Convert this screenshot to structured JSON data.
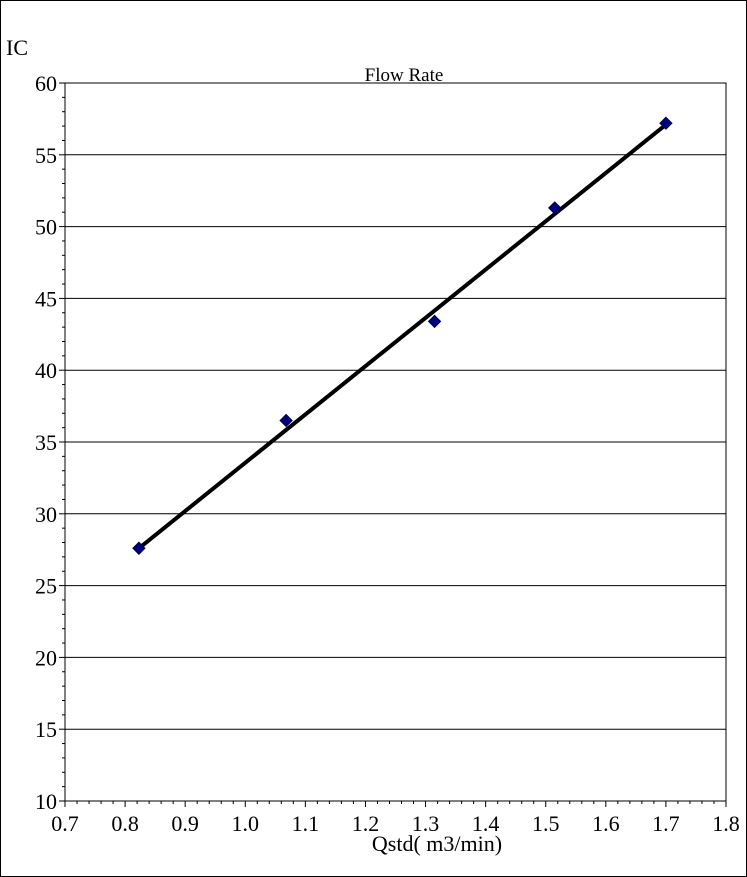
{
  "chart_data": {
    "type": "scatter",
    "title": "Flow Rate",
    "xlabel": "Qstd( m3/min)",
    "ylabel": "IC",
    "xlim": [
      0.7,
      1.8
    ],
    "ylim": [
      10,
      60
    ],
    "x_ticks": [
      "0.7",
      "0.8",
      "0.9",
      "1.0",
      "1.1",
      "1.2",
      "1.3",
      "1.4",
      "1.5",
      "1.6",
      "1.7",
      "1.8"
    ],
    "y_ticks": [
      "10",
      "15",
      "20",
      "25",
      "30",
      "35",
      "40",
      "45",
      "50",
      "55",
      "60"
    ],
    "grid": "horizontal",
    "legend": "none",
    "series": [
      {
        "values": [
          {
            "x": 0.823,
            "y": 27.6
          },
          {
            "x": 1.068,
            "y": 36.5
          },
          {
            "x": 1.315,
            "y": 43.4
          },
          {
            "x": 1.515,
            "y": 51.3
          },
          {
            "x": 1.7,
            "y": 57.2
          }
        ]
      }
    ],
    "trendline": {
      "x1": 0.823,
      "y1": 27.6,
      "x2": 1.7,
      "y2": 57.1
    },
    "colors": {
      "marker": "#000080",
      "trendline": "#000000",
      "grid": "#000000"
    }
  }
}
